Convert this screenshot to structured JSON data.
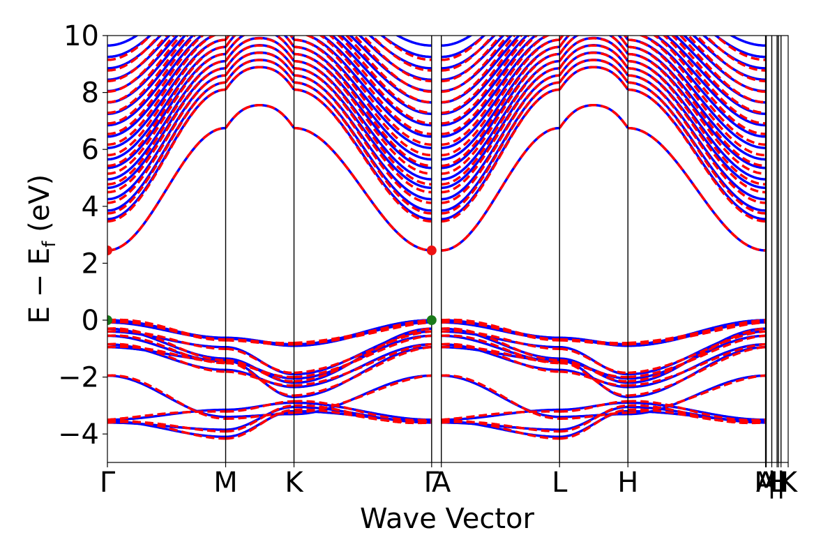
{
  "chart_data": {
    "type": "line",
    "title": "",
    "xlabel": "Wave Vector",
    "ylabel": "E − E",
    "ylabel_sub": "f",
    "ylabel_unit": " (eV)",
    "ylim": [
      -5,
      10
    ],
    "xlim": [
      0,
      2.948
    ],
    "y_ticks": [
      {
        "value": -4,
        "label": "−4"
      },
      {
        "value": -2,
        "label": "−2"
      },
      {
        "value": 0,
        "label": "0"
      },
      {
        "value": 2,
        "label": "2"
      },
      {
        "value": 4,
        "label": "4"
      },
      {
        "value": 6,
        "label": "6"
      },
      {
        "value": 8,
        "label": "8"
      },
      {
        "value": 10,
        "label": "10"
      }
    ],
    "k_points": [
      {
        "label": "Γ",
        "x": 0.0
      },
      {
        "label": "M",
        "x": 0.512
      },
      {
        "label": "K",
        "x": 0.808
      },
      {
        "label": "Γ",
        "x": 1.404
      },
      {
        "label": "A",
        "x": 1.446
      },
      {
        "label": "L",
        "x": 1.958
      },
      {
        "label": "H",
        "x": 2.254
      },
      {
        "label": "A",
        "x": 2.85
      },
      {
        "label": "M",
        "x": 2.853
      },
      {
        "label": "|",
        "x": 2.877
      },
      {
        "label": "L",
        "x": 2.9
      },
      {
        "label": "H",
        "x": 2.906
      },
      {
        "label": "|",
        "x": 2.917
      },
      {
        "label": "K",
        "x": 2.948
      }
    ],
    "series": [
      {
        "color": "#0000ff",
        "style": "solid"
      },
      {
        "color": "#ff0000",
        "style": "dashed"
      }
    ],
    "markers": [
      {
        "x": 0.0,
        "y": 2.45,
        "color": "#ee1111"
      },
      {
        "x": 1.404,
        "y": 2.45,
        "color": "#ee1111"
      },
      {
        "x": 0.0,
        "y": 0.0,
        "color": "#1a7a1a"
      },
      {
        "x": 1.404,
        "y": 0.0,
        "color": "#1a7a1a"
      }
    ],
    "grid": false
  }
}
